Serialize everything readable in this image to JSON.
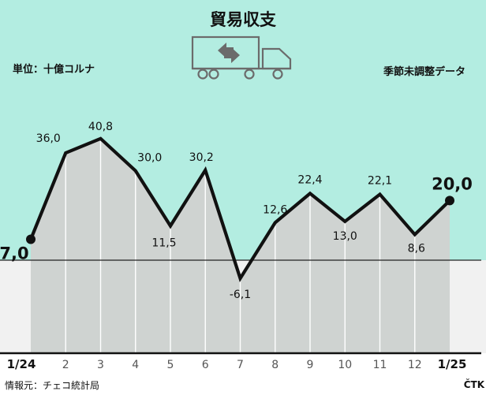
{
  "header": {
    "title": "貿易収支",
    "unit": "単位：十億コルナ",
    "seasonal_note": "季節未調整データ"
  },
  "footer": {
    "source": "情報元：チェコ統計局",
    "logo": "ČTK"
  },
  "colors": {
    "upper_bg": "#b3ede1",
    "area_fill": "#cfd3d1",
    "lower_bg": "#f1f1f1",
    "line": "#111111",
    "grid": "#ffffff"
  },
  "icons": [
    "truck-icon",
    "exchange-arrows-icon"
  ],
  "chart_data": {
    "type": "line",
    "title": "貿易収支",
    "ylabel": "単位：十億コルナ",
    "xlabel": "",
    "categories": [
      "1/24",
      "2",
      "3",
      "4",
      "5",
      "6",
      "7",
      "8",
      "9",
      "10",
      "11",
      "12",
      "1/25"
    ],
    "series": [
      {
        "values": [
          7.0,
          36.0,
          40.8,
          30.0,
          11.5,
          30.2,
          -6.1,
          12.6,
          22.4,
          13.0,
          22.1,
          8.6,
          20.0
        ]
      }
    ],
    "value_labels": [
      "7,0",
      "36,0",
      "40,8",
      "30,0",
      "11,5",
      "30,2",
      "-6,1",
      "12,6",
      "22,4",
      "13,0",
      "22,1",
      "8,6",
      "20,0"
    ],
    "ylim": [
      -10,
      55
    ],
    "reference_line": 0,
    "grid": "vertical",
    "legend": "none"
  }
}
